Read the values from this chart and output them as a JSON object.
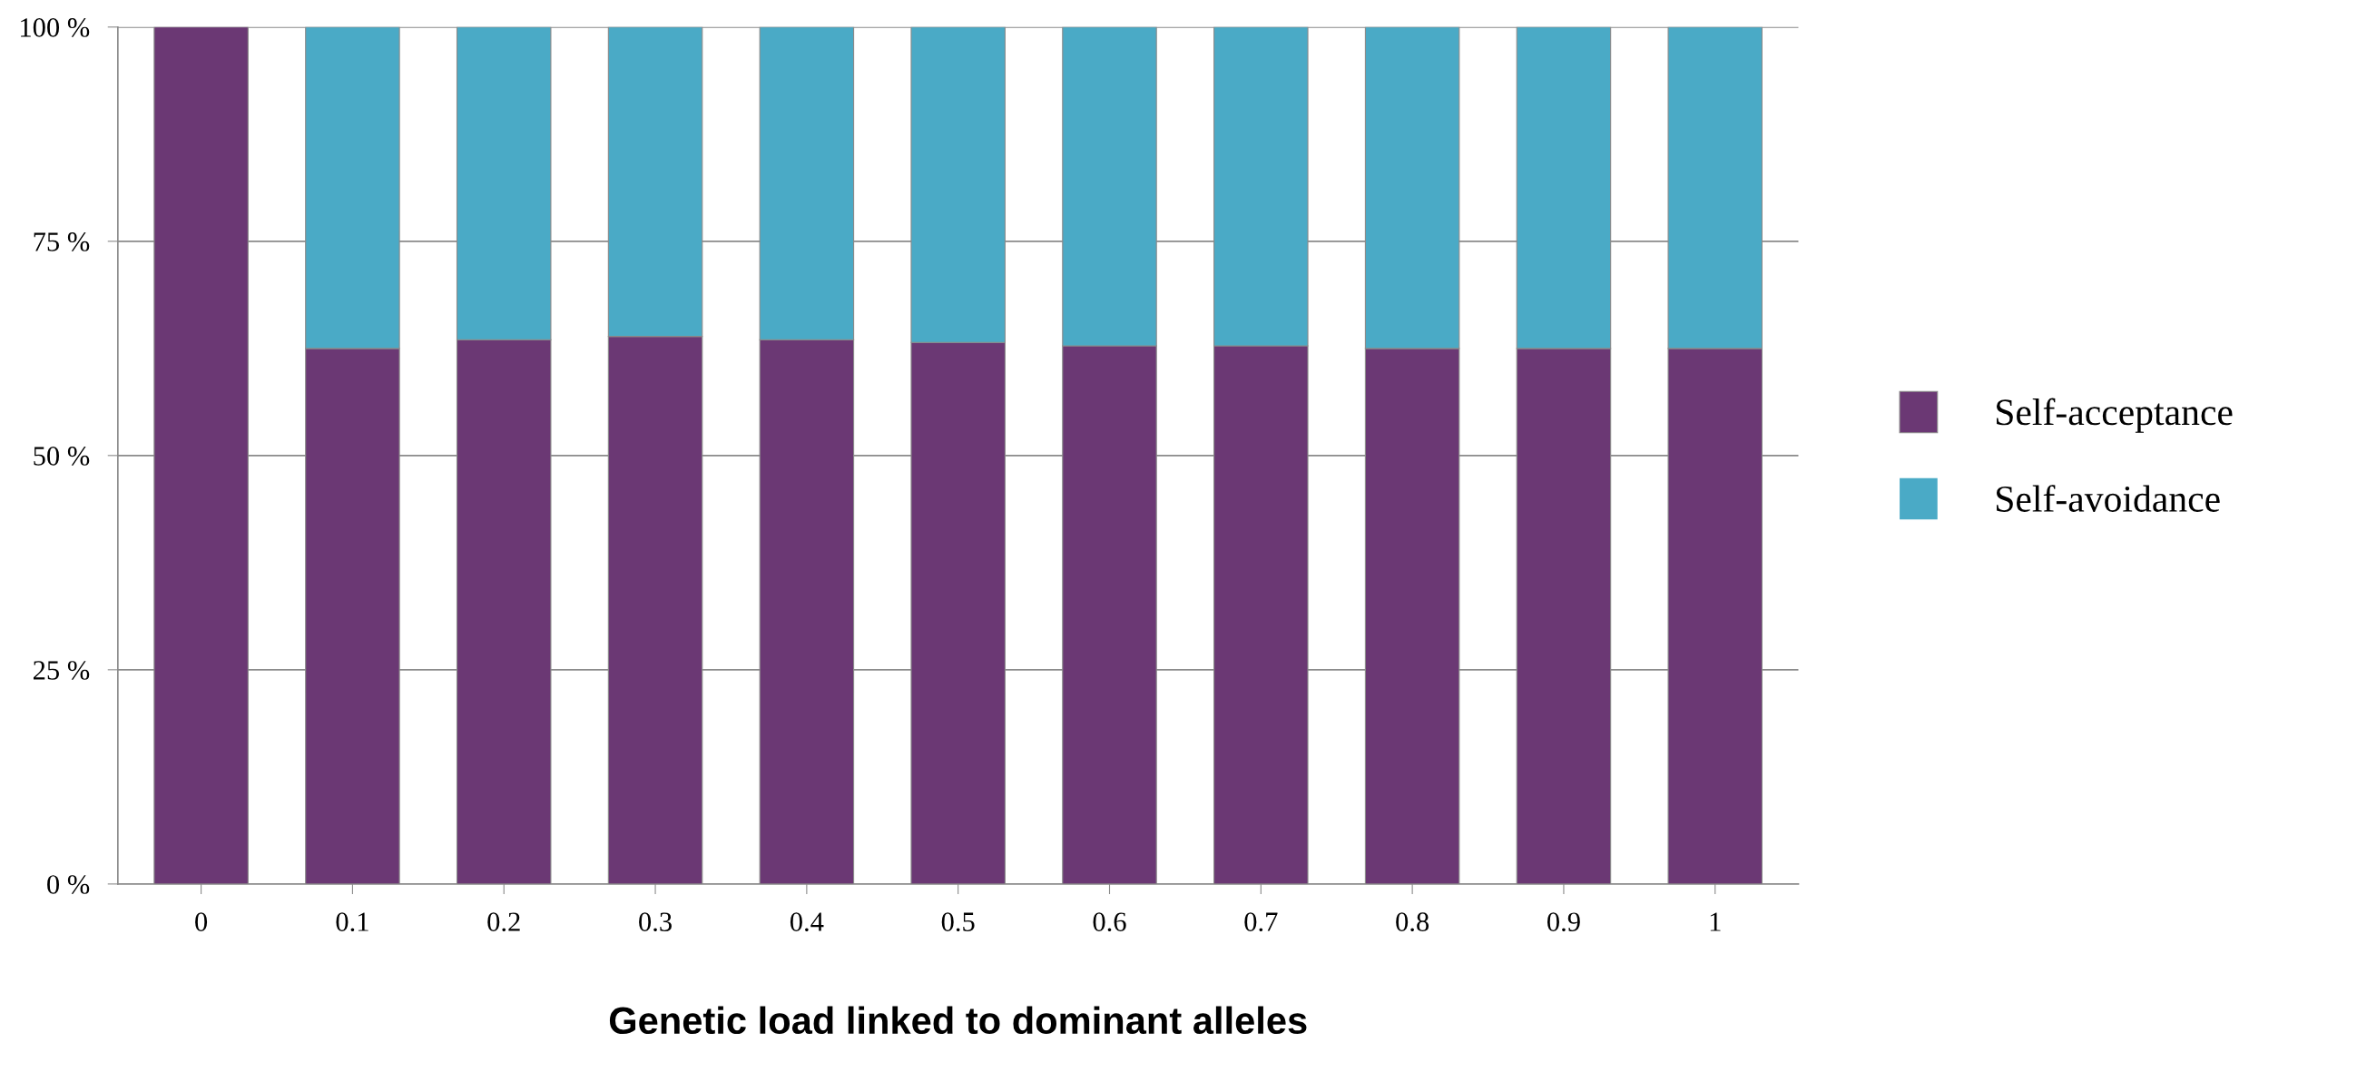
{
  "chart_data": {
    "type": "bar",
    "stacked": true,
    "xlabel": "Genetic load linked to dominant alleles",
    "categories": [
      "0",
      "0.1",
      "0.2",
      "0.3",
      "0.4",
      "0.5",
      "0.6",
      "0.7",
      "0.8",
      "0.9",
      "1"
    ],
    "series": [
      {
        "name": "Self-acceptance",
        "color": "#6b3874",
        "values": [
          100,
          62.5,
          63.5,
          63.9,
          63.5,
          63.2,
          62.8,
          62.8,
          62.5,
          62.5,
          62.5
        ]
      },
      {
        "name": "Self-avoidance",
        "color": "#4aaac6",
        "values": [
          null,
          37.5,
          36.5,
          36.1,
          36.5,
          36.8,
          37.2,
          37.2,
          37.5,
          37.5,
          37.5
        ]
      }
    ],
    "ylim": [
      0,
      100
    ],
    "yticks": [
      {
        "value": 0,
        "label": "0 %"
      },
      {
        "value": 25,
        "label": "25 %"
      },
      {
        "value": 50,
        "label": "50 %"
      },
      {
        "value": 75,
        "label": "75 %"
      },
      {
        "value": 100,
        "label": "100 %"
      }
    ],
    "grid": "y",
    "legend": "right"
  }
}
